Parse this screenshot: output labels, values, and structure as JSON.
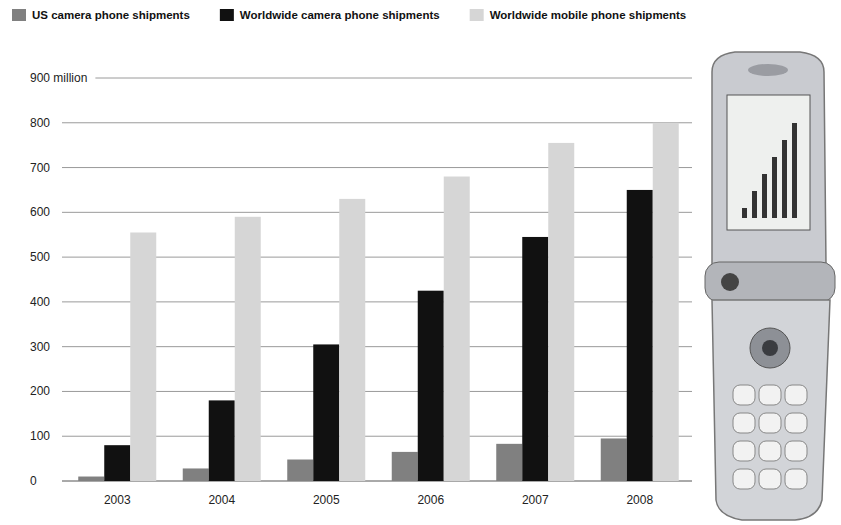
{
  "chart_data": {
    "type": "bar",
    "categories": [
      "2003",
      "2004",
      "2005",
      "2006",
      "2007",
      "2008"
    ],
    "series": [
      {
        "name": "US camera phone shipments",
        "color": "#808080",
        "values": [
          10,
          28,
          48,
          65,
          83,
          95
        ]
      },
      {
        "name": "Worldwide camera phone shipments",
        "color": "#111111",
        "values": [
          80,
          180,
          305,
          425,
          545,
          650
        ]
      },
      {
        "name": "Worldwide mobile phone shipments",
        "color": "#d6d6d6",
        "values": [
          555,
          590,
          630,
          680,
          755,
          800
        ]
      }
    ],
    "ylim": [
      0,
      900
    ],
    "yticks": [
      0,
      100,
      200,
      300,
      400,
      500,
      600,
      700,
      800,
      {
        "value": 900,
        "label": "900 million"
      }
    ],
    "grid": true,
    "legend": "top"
  }
}
